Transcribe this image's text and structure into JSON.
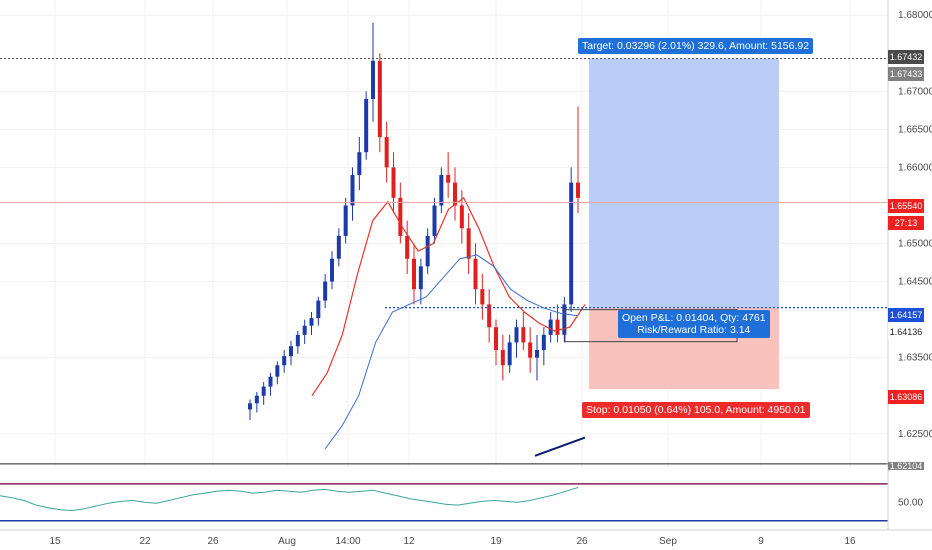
{
  "chart_data": {
    "type": "candlestick",
    "y_ticks": [
      "1.68000",
      "1.67000",
      "1.66500",
      "1.66000",
      "1.65000",
      "1.64500",
      "1.63500",
      "1.62500"
    ],
    "ylim": [
      1.6205,
      1.682
    ],
    "x_ticks": [
      "15",
      "22",
      "26",
      "Aug",
      "14:00",
      "12",
      "19",
      "26",
      "Sep",
      "9",
      "16"
    ],
    "price_levels": {
      "target_price": 1.67432,
      "current_price": 1.6554,
      "entry_price": 1.64157,
      "stop_price": 1.63086,
      "secondary_price": 1.64136,
      "bottom_price": 1.62104
    },
    "price_labels": {
      "target": "1.67432",
      "target_alt": "1.67433",
      "current": "1.65540",
      "countdown": "27:13",
      "entry": "1.64157",
      "secondary": "1.64136",
      "stop": "1.63086",
      "bottom": "1.62104"
    },
    "position_tool": {
      "target_text": "Target: 0.03296 (2.01%) 329.6, Amount: 5156.92",
      "stop_text": "Stop: 0.01050 (0.64%) 105.0, Amount: 4950.01",
      "pnl_text": "Open P&L: 0.01404, Qty: 4761",
      "rr_text": "Risk/Reward Ratio: 3.14"
    },
    "candles": [
      [
        1.6282,
        1.6295,
        1.6268,
        1.629
      ],
      [
        1.629,
        1.6305,
        1.6278,
        1.63
      ],
      [
        1.63,
        1.6318,
        1.6288,
        1.6312
      ],
      [
        1.6312,
        1.633,
        1.63,
        1.6325
      ],
      [
        1.6325,
        1.6345,
        1.6315,
        1.634
      ],
      [
        1.634,
        1.636,
        1.633,
        1.6352
      ],
      [
        1.6352,
        1.6372,
        1.634,
        1.6365
      ],
      [
        1.6365,
        1.6385,
        1.6355,
        1.638
      ],
      [
        1.638,
        1.64,
        1.6368,
        1.6392
      ],
      [
        1.6392,
        1.641,
        1.638,
        1.6402
      ],
      [
        1.6402,
        1.643,
        1.6392,
        1.6425
      ],
      [
        1.6425,
        1.646,
        1.6415,
        1.645
      ],
      [
        1.645,
        1.649,
        1.644,
        1.648
      ],
      [
        1.648,
        1.652,
        1.647,
        1.651
      ],
      [
        1.651,
        1.656,
        1.65,
        1.655
      ],
      [
        1.655,
        1.66,
        1.653,
        1.659
      ],
      [
        1.659,
        1.664,
        1.657,
        1.662
      ],
      [
        1.662,
        1.67,
        1.661,
        1.669
      ],
      [
        1.669,
        1.679,
        1.666,
        1.674
      ],
      [
        1.674,
        1.675,
        1.662,
        1.664
      ],
      [
        1.664,
        1.666,
        1.658,
        1.66
      ],
      [
        1.66,
        1.662,
        1.654,
        1.656
      ],
      [
        1.656,
        1.658,
        1.65,
        1.651
      ],
      [
        1.651,
        1.653,
        1.646,
        1.648
      ],
      [
        1.648,
        1.65,
        1.642,
        1.644
      ],
      [
        1.644,
        1.648,
        1.642,
        1.647
      ],
      [
        1.647,
        1.652,
        1.646,
        1.651
      ],
      [
        1.651,
        1.656,
        1.65,
        1.655
      ],
      [
        1.655,
        1.66,
        1.654,
        1.659
      ],
      [
        1.659,
        1.662,
        1.656,
        1.658
      ],
      [
        1.658,
        1.66,
        1.653,
        1.655
      ],
      [
        1.655,
        1.657,
        1.65,
        1.652
      ],
      [
        1.652,
        1.654,
        1.646,
        1.648
      ],
      [
        1.648,
        1.65,
        1.642,
        1.644
      ],
      [
        1.644,
        1.646,
        1.64,
        1.642
      ],
      [
        1.642,
        1.644,
        1.637,
        1.639
      ],
      [
        1.639,
        1.64,
        1.634,
        1.636
      ],
      [
        1.636,
        1.638,
        1.632,
        1.634
      ],
      [
        1.634,
        1.638,
        1.633,
        1.637
      ],
      [
        1.637,
        1.64,
        1.635,
        1.639
      ],
      [
        1.639,
        1.641,
        1.636,
        1.637
      ],
      [
        1.637,
        1.639,
        1.633,
        1.635
      ],
      [
        1.635,
        1.638,
        1.632,
        1.636
      ],
      [
        1.636,
        1.639,
        1.634,
        1.638
      ],
      [
        1.638,
        1.641,
        1.637,
        1.64
      ],
      [
        1.64,
        1.642,
        1.637,
        1.638
      ],
      [
        1.638,
        1.643,
        1.637,
        1.642
      ],
      [
        1.642,
        1.66,
        1.641,
        1.658
      ],
      [
        1.658,
        1.668,
        1.654,
        1.656
      ]
    ],
    "ma_fast_line": [
      1.63,
      1.633,
      1.638,
      1.646,
      1.653,
      1.6555,
      1.652,
      1.649,
      1.65,
      1.6545,
      1.656,
      1.652,
      1.647,
      1.643,
      1.641,
      1.6395,
      1.6385,
      1.639,
      1.642
    ],
    "ma_slow_line": [
      1.623,
      1.626,
      1.63,
      1.637,
      1.641,
      1.642,
      1.643,
      1.6455,
      1.648,
      1.6485,
      1.647,
      1.644,
      1.6425,
      1.6415,
      1.6408,
      1.6405
    ],
    "trend_line": [
      1.6221,
      1.6245
    ],
    "rsi": {
      "level_label": "50.00",
      "levels": [
        70,
        30
      ],
      "values": [
        57,
        55,
        52,
        47,
        44,
        42,
        41,
        43,
        46,
        49,
        51,
        52,
        50,
        49,
        52,
        55,
        58,
        60,
        62,
        63,
        62,
        60,
        61,
        63,
        62,
        61,
        63,
        64,
        62,
        61,
        62,
        63,
        60,
        57,
        54,
        52,
        50,
        48,
        47,
        49,
        51,
        52,
        51,
        50,
        52,
        55,
        58,
        62,
        66
      ]
    }
  }
}
